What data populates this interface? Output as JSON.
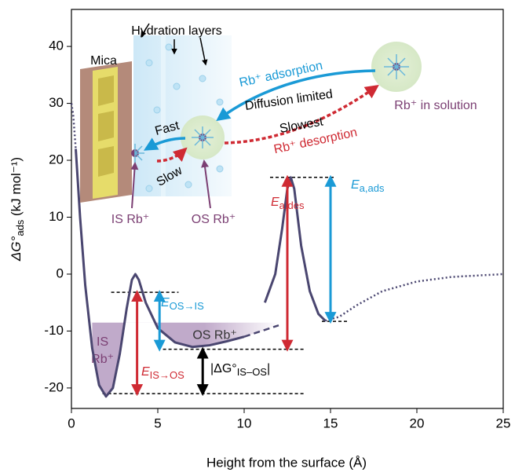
{
  "chart_data": {
    "type": "line",
    "xlabel": "Height from the surface (Å)",
    "ylabel": {
      "main": "ΔG°",
      "sub": "ads",
      "unit": " (kJ mol⁻¹)"
    },
    "xlim": [
      0,
      25
    ],
    "xticks": [
      0,
      5,
      10,
      15,
      20,
      25
    ],
    "ylim": [
      -23.6,
      46.5
    ],
    "yticks": [
      -20,
      -10,
      0,
      10,
      20,
      30,
      40
    ],
    "line_color": "#4a4670",
    "shaded_level": -8.5,
    "series": [
      {
        "style": "solid",
        "x": [
          0.25,
          0.5,
          0.8,
          1.2,
          1.6,
          2,
          2.4,
          2.8,
          3.2,
          3.5,
          3.7,
          3.9,
          4.3,
          5,
          6,
          7,
          8,
          9,
          10
        ],
        "values": [
          22,
          10,
          -2,
          -13,
          -19.5,
          -21.5,
          -20,
          -14,
          -6,
          -1,
          0,
          -1,
          -5,
          -9.5,
          -12,
          -12.8,
          -12.5,
          -11.8,
          -11
        ]
      },
      {
        "style": "dashed",
        "x": [
          10,
          11,
          12
        ],
        "values": [
          -11,
          -10,
          -9
        ]
      },
      {
        "style": "solid",
        "x": [
          11.2,
          11.8,
          12.2,
          12.5,
          12.7,
          12.9,
          13.3,
          13.8,
          14.3,
          14.7
        ],
        "values": [
          -5,
          0,
          8,
          15,
          17,
          15,
          5,
          -3,
          -7,
          -8.2
        ]
      },
      {
        "style": "dotted",
        "x": [
          14.7,
          15.5,
          16.5,
          18,
          20,
          22,
          25
        ],
        "values": [
          -8.2,
          -7.5,
          -5.5,
          -3,
          -1.3,
          -0.5,
          0
        ]
      },
      {
        "style": "dotted",
        "x": [
          0,
          0.1,
          0.25
        ],
        "values": [
          30,
          28,
          22
        ]
      }
    ],
    "reference_lines": [
      {
        "y": -3.2,
        "x": [
          2.3,
          6.2
        ]
      },
      {
        "y": -13.2,
        "x": [
          5.3,
          13.5
        ]
      },
      {
        "y": -21,
        "x": [
          1.8,
          13.5
        ]
      },
      {
        "y": 17,
        "x": [
          11.5,
          15.3
        ]
      },
      {
        "y": -8.3,
        "x": [
          14.5,
          16
        ]
      }
    ],
    "arrows": [
      {
        "x": 3.8,
        "from": -21,
        "to": -3.2,
        "color": "#cf2a33"
      },
      {
        "x": 5.1,
        "from": -3.2,
        "to": -13.2,
        "color": "#1a9ad6"
      },
      {
        "x": 12.5,
        "from": -13.2,
        "to": 17,
        "color": "#cf2a33"
      },
      {
        "x": 15,
        "from": 17,
        "to": -8.3,
        "color": "#1a9ad6"
      },
      {
        "x": 7.6,
        "from": -13.2,
        "to": -21,
        "color": "#000000"
      }
    ],
    "energy_labels": [
      {
        "symbol": "E",
        "sub": "IS→OS"
      },
      {
        "symbol": "E",
        "sub": "OS→IS"
      },
      {
        "symbol": "E",
        "sub": "a,des"
      },
      {
        "symbol": "E",
        "sub": "a,ads"
      }
    ],
    "delta_label": {
      "prefix": "|ΔG°",
      "sub": "IS–OS",
      "suffix": "|"
    },
    "region_labels": {
      "is": [
        "IS",
        "Rb⁺"
      ],
      "os": "OS Rb⁺"
    },
    "inset": {
      "hydration": "Hydration layers",
      "mica": "Mica",
      "adsorption": "Rb⁺ adsorption",
      "diffusion": "Diffusion limited",
      "slowest": "Slowest",
      "desorption": "Rb⁺ desorption",
      "solution": "Rb⁺ in solution",
      "fast": "Fast",
      "slow": "Slow",
      "is_ion": "IS Rb⁺",
      "os_ion": "OS Rb⁺"
    }
  }
}
